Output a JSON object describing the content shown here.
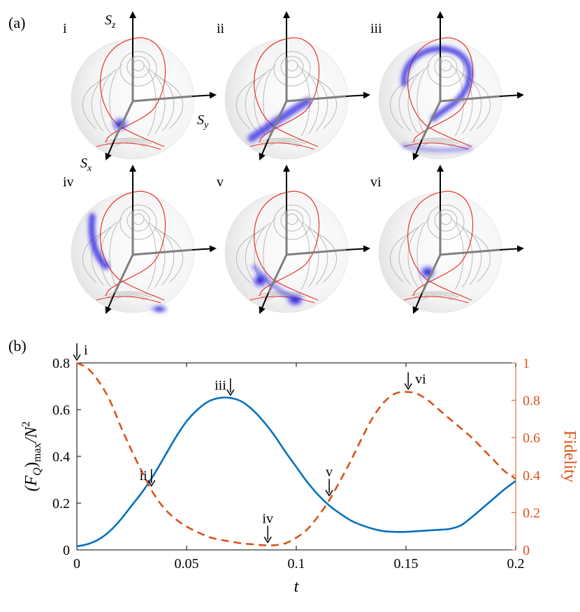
{
  "figure": {
    "panel_a_label": "(a)",
    "panel_b_label": "(b)",
    "colors": {
      "blue": "#0072bd",
      "orange": "#d95319",
      "separatrix": "#e8342a",
      "contour": "#b9b9b9",
      "axis": "#7f7f7f",
      "density": "#2b22e0"
    }
  },
  "spheres": [
    {
      "id": "i",
      "label": "i",
      "axis_labels": {
        "z": "S",
        "z_sub": "z",
        "y": "S",
        "y_sub": "y",
        "x": "S",
        "x_sub": "x"
      },
      "blobs": [
        {
          "u": 0.2,
          "v": 0.88,
          "size": "small"
        }
      ]
    },
    {
      "id": "ii",
      "label": "ii",
      "axis_labels": null,
      "blobs": [
        {
          "u": 0.25,
          "v": 0.9,
          "size": "stretched"
        }
      ]
    },
    {
      "id": "iii",
      "label": "iii",
      "axis_labels": null,
      "blobs": [
        {
          "u": 0.5,
          "v": 0.15,
          "size": "arc"
        }
      ]
    },
    {
      "id": "iv",
      "label": "iv",
      "axis_labels": null,
      "blobs": [
        {
          "u": 0.05,
          "v": 0.45,
          "size": "arc-side"
        }
      ]
    },
    {
      "id": "v",
      "label": "v",
      "axis_labels": null,
      "blobs": [
        {
          "u": 0.25,
          "v": 0.75,
          "size": "two"
        }
      ]
    },
    {
      "id": "vi",
      "label": "vi",
      "axis_labels": null,
      "blobs": [
        {
          "u": 0.2,
          "v": 0.85,
          "size": "small"
        }
      ]
    }
  ],
  "chart_data": {
    "type": "line",
    "xlabel": "t",
    "ylabel_left": "(F_Q)_max/N^2",
    "ylabel_left_parts": {
      "open": "(F",
      "sub1": "Q",
      "close": ")",
      "sub2": "max",
      "slash": "/N",
      "sup": "2"
    },
    "ylabel_right": "Fidelity",
    "xlim": [
      0,
      0.2
    ],
    "ylim_left": [
      0,
      0.8
    ],
    "ylim_right": [
      0,
      1
    ],
    "xticks": [
      0,
      0.05,
      0.1,
      0.15,
      0.2
    ],
    "xtick_labels": [
      "0",
      "0.05",
      "0.1",
      "0.15",
      "0.2"
    ],
    "yticks_left": [
      0,
      0.2,
      0.4,
      0.6,
      0.8
    ],
    "ytick_labels_left": [
      "0",
      "0.2",
      "0.4",
      "0.6",
      "0.8"
    ],
    "yticks_right": [
      0,
      0.2,
      0.4,
      0.6,
      0.8,
      1
    ],
    "ytick_labels_right": [
      "0",
      "0.2",
      "0.4",
      "0.6",
      "0.8",
      "1"
    ],
    "series": [
      {
        "name": "(F_Q)_max/N^2",
        "axis": "left",
        "style": "solid",
        "color": "#0072bd",
        "x": [
          0,
          0.005,
          0.01,
          0.015,
          0.02,
          0.025,
          0.03,
          0.035,
          0.04,
          0.045,
          0.05,
          0.055,
          0.06,
          0.065,
          0.07,
          0.075,
          0.08,
          0.085,
          0.09,
          0.095,
          0.1,
          0.105,
          0.11,
          0.115,
          0.12,
          0.125,
          0.13,
          0.135,
          0.14,
          0.145,
          0.15,
          0.155,
          0.16,
          0.165,
          0.17,
          0.175,
          0.18,
          0.185,
          0.19,
          0.195,
          0.2
        ],
        "y": [
          0.015,
          0.025,
          0.045,
          0.08,
          0.13,
          0.19,
          0.25,
          0.32,
          0.4,
          0.48,
          0.55,
          0.6,
          0.635,
          0.65,
          0.65,
          0.635,
          0.6,
          0.55,
          0.49,
          0.42,
          0.355,
          0.29,
          0.235,
          0.19,
          0.155,
          0.125,
          0.105,
          0.09,
          0.08,
          0.077,
          0.077,
          0.08,
          0.083,
          0.086,
          0.09,
          0.105,
          0.14,
          0.18,
          0.22,
          0.26,
          0.295
        ]
      },
      {
        "name": "Fidelity",
        "axis": "right",
        "style": "dashed",
        "color": "#d95319",
        "x": [
          0,
          0.005,
          0.01,
          0.015,
          0.02,
          0.025,
          0.03,
          0.035,
          0.04,
          0.045,
          0.05,
          0.055,
          0.06,
          0.065,
          0.07,
          0.075,
          0.08,
          0.085,
          0.09,
          0.095,
          0.1,
          0.105,
          0.11,
          0.115,
          0.12,
          0.125,
          0.13,
          0.135,
          0.14,
          0.145,
          0.15,
          0.155,
          0.16,
          0.165,
          0.17,
          0.175,
          0.18,
          0.185,
          0.19,
          0.195,
          0.2
        ],
        "y": [
          1.0,
          0.97,
          0.9,
          0.8,
          0.66,
          0.53,
          0.41,
          0.3,
          0.22,
          0.165,
          0.125,
          0.095,
          0.07,
          0.055,
          0.045,
          0.035,
          0.03,
          0.025,
          0.025,
          0.035,
          0.065,
          0.11,
          0.18,
          0.265,
          0.37,
          0.48,
          0.6,
          0.71,
          0.79,
          0.835,
          0.845,
          0.835,
          0.8,
          0.75,
          0.7,
          0.65,
          0.6,
          0.54,
          0.48,
          0.42,
          0.38
        ]
      }
    ],
    "annotations": [
      {
        "text": "i",
        "x": 0.0,
        "axis": "left",
        "y": 0.8,
        "placement": "right"
      },
      {
        "text": "ii",
        "x": 0.034,
        "axis": "left",
        "y": 0.262,
        "placement": "left"
      },
      {
        "text": "iii",
        "x": 0.07,
        "axis": "left",
        "y": 0.65,
        "placement": "left"
      },
      {
        "text": "iv",
        "x": 0.087,
        "axis": "right",
        "y": 0.025,
        "placement": "above"
      },
      {
        "text": "v",
        "x": 0.115,
        "axis": "left",
        "y": 0.22,
        "placement": "above"
      },
      {
        "text": "vi",
        "x": 0.151,
        "axis": "right",
        "y": 0.845,
        "placement": "right"
      }
    ]
  }
}
